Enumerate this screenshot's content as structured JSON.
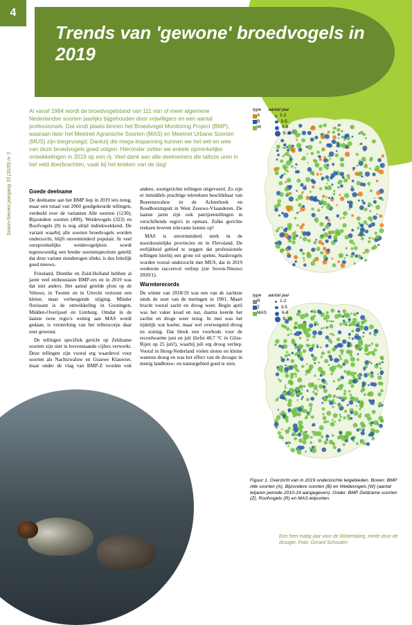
{
  "page_number": "4",
  "side_label": "Sovon-Nieuws jaargang 33 (2020) nr 3",
  "title": "Trends van 'gewone' broedvogels in 2019",
  "intro": "Al vanaf 1984 wordt de broedvogelstand van 111 min of meer algemene Nederlandse soorten jaarlijks bijgehouden door vrijwilligers en een aantal professionals. Dat vindt plaats binnen het Broedvogel Monitoring Project (BMP), waaraan later het Meetnet Agrarische Soorten (MAS) en Meetnet Urbane Soorten (MUS) zijn toegevoegd. Dankzij die mega-inspanning kunnen we het wel en wee van deze broedvogels goed volgen. Hieronder zetten we enkele opmerkelijke ontwikkelingen in 2019 op een rij. Veel dank aan alle deelnemers die talloze uren in het veld doorbrachten, vaak bij het krieken van de dag!",
  "body": {
    "h1": "Goede deelname",
    "p1": "De deelname aan het BMP liep in 2019 iets terug, maar een totaal van 2060 goedgekeurde tellingen, verdeeld over de varianten Alle soorten (1230), Bijzondere soorten (499), Weidevogels (323) en Roofvogels (8) is nog altijd indrukwekkend. De variant waarbij alle soorten broedvogels worden onderzocht, blijft onverminderd populair. In veel oorspronkelijke weidevogelplots wordt tegenwoordig een breder soortenspectrum geteld; dat deze variant zienderogen slinkt, is dus feitelijk goed nieuws.",
    "p2": "Friesland, Drenthe en Zuid-Holland hebben al jaren veel enthousiaste BMP-ers en in 2019 was dat niet anders. Het aantal getelde plots op de Veluwe, in Twente en in Utrecht vertoont een kleine, maar verheugende stijging. Minder florissant is de ontwikkeling in Groningen, Midden-Overijssel en Limburg. Omdat in de laatste twee regio's weinig aan MAS wordt gedaan, is versterking van het tellerscorps daar zeer gewenst.",
    "p3": "De tellingen specifiek gericht op Zeldzame soorten zijn niet in bovenstaande cijfers verwerkt. Deze tellingen zijn vooral erg waardevol voor soorten als Nachtzwaluw en Grauwe Klauwier, maar onder de vlag van BMP-Z worden ook andere, soortgerichte tellingen uitgevoerd. Zo zijn er inmiddels prachtige telreeksen beschikbaar van Boerenzwaluw in de Achterhoek en Roodborsttapuit in West Zeeuws-Vlaanderen. De laatste jaren zijn ook patrijzentellingen in verschillende regio's in opmars. Zulke gerichte reeksen leveren relevante kennis op!",
    "p4": "MAS is onverminderd sterk in de noordoostelijke provincies en in Flevoland. De eerlijkheid gebied te zeggen dat professionele tellingen hierbij een grote rol spelen. Stadsvogels worden vooral onderzocht met MUS, dat in 2019 wederom succesvol verliep (zie Sovon-Nieuws 2020/1).",
    "h2": "Warmterecords",
    "p5": "De winter van 2018/19 was een van de zachtste sinds de start van de metingen in 1901. Maart bracht vooral zacht en droog weer. Begin april was het vaker koud en nat, daarna keerde het zachte en droge weer terug. In mei was het tijdelijk wat koeler, maar wel overwegend droog en zonnig. Dat bleek een voorbode voor de recordwarme juni en juli (liefst 40,7 °C in Gilze-Rijen op 25 juli!), waarbij juli erg droog verliep. Vooral in Hoog-Nederland vielen sloten en kleine wateren droog en was het effect van de droogte in menig landbouw- en natuurgebied goed te zien."
  },
  "map1": {
    "legend_type": "type",
    "legend_count": "aantal jaar",
    "rows": [
      {
        "label": "A",
        "color": "#e87d1e",
        "count": "1-2"
      },
      {
        "label": "B",
        "color": "#2a5caa",
        "count": "3-5"
      },
      {
        "label": "W",
        "color": "#6fbf44",
        "count": "6-8"
      },
      {
        "label": "",
        "color": "",
        "count": "9-10"
      }
    ]
  },
  "map2": {
    "legend_type": "type",
    "legend_count": "aantal jaar",
    "rows": [
      {
        "label": "R",
        "color": "#8a8a8a",
        "count": "1-2"
      },
      {
        "label": "Z",
        "color": "#2a5caa",
        "count": "3-5"
      },
      {
        "label": "MAS",
        "color": "#6fbf44",
        "count": "6-8"
      },
      {
        "label": "",
        "color": "",
        "count": "9-10"
      }
    ]
  },
  "figure_caption": "Figuur 1. Overzicht van in 2019 onderzochte telgebieden. Boven: BMP Alle soorten (A), Bijzondere soorten (B) en Weidevogels (W) (aantal teljaren periode 2010-19 aangegeven). Onder: BMP Zeldzame soorten (Z), Roofvogels (R) en MAS-telpunten.",
  "photo_caption": "Een heel matig jaar voor de Wintertaling, mede door de droogte. Foto: Gerard Schouten",
  "colors": {
    "accent_dark": "#6a8c2e",
    "accent_light": "#a6ce39",
    "text_accent": "#7a9b3a"
  }
}
